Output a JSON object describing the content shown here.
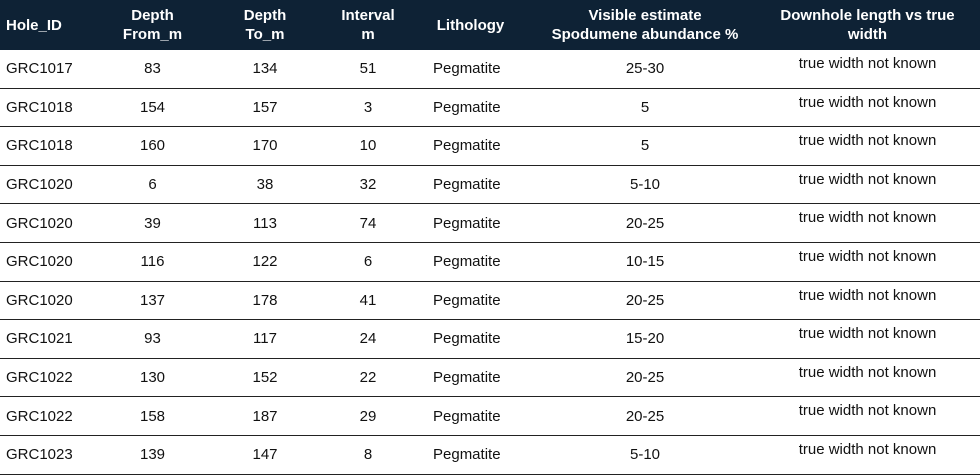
{
  "table": {
    "header": [
      [
        "Hole_ID"
      ],
      [
        "Depth",
        "From_m"
      ],
      [
        "Depth",
        "To_m"
      ],
      [
        "Interval",
        "m"
      ],
      [
        "Lithology"
      ],
      [
        "Visible estimate",
        "Spodumene abundance %"
      ],
      [
        "Downhole length vs true",
        "width"
      ]
    ],
    "rows": [
      [
        "GRC1017",
        83,
        134,
        51,
        "Pegmatite",
        "25-30",
        "true width not known"
      ],
      [
        "GRC1018",
        154,
        157,
        3,
        "Pegmatite",
        5,
        "true width not known"
      ],
      [
        "GRC1018",
        160,
        170,
        10,
        "Pegmatite",
        5,
        "true width not known"
      ],
      [
        "GRC1020",
        6,
        38,
        32,
        "Pegmatite",
        "5-10",
        "true width not known"
      ],
      [
        "GRC1020",
        39,
        113,
        74,
        "Pegmatite",
        "20-25",
        "true width not known"
      ],
      [
        "GRC1020",
        116,
        122,
        6,
        "Pegmatite",
        "10-15",
        "true width not known"
      ],
      [
        "GRC1020",
        137,
        178,
        41,
        "Pegmatite",
        "20-25",
        "true width not known"
      ],
      [
        "GRC1021",
        93,
        117,
        24,
        "Pegmatite",
        "15-20",
        "true width not known"
      ],
      [
        "GRC1022",
        130,
        152,
        22,
        "Pegmatite",
        "20-25",
        "true width not known"
      ],
      [
        "GRC1022",
        158,
        187,
        29,
        "Pegmatite",
        "20-25",
        "true width not known"
      ],
      [
        "GRC1023",
        139,
        147,
        8,
        "Pegmatite",
        "5-10",
        "true width not known"
      ]
    ]
  }
}
